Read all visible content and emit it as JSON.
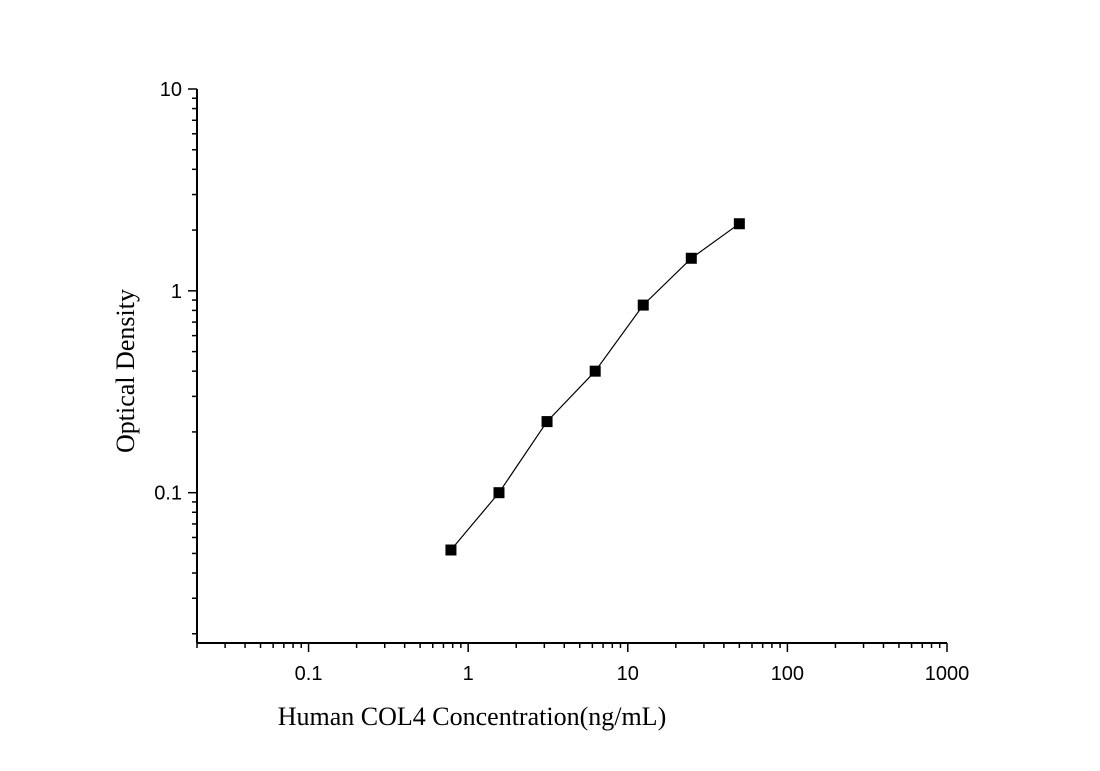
{
  "chart_data": {
    "type": "scatter",
    "xscale": "log",
    "yscale": "log",
    "xlim": [
      0.02,
      1000
    ],
    "ylim": [
      0.018,
      10
    ],
    "xlabel": "Human COL4 Concentration(ng/mL)",
    "ylabel": "Optical Density",
    "x_tick_labels": [
      "0.1",
      "1",
      "10",
      "100",
      "1000"
    ],
    "y_tick_labels": [
      "0.1",
      "1",
      "10"
    ],
    "x_tick_values": [
      0.1,
      1,
      10,
      100,
      1000
    ],
    "y_tick_values": [
      0.1,
      1,
      10
    ],
    "grid": false,
    "line_connected": true,
    "marker": "square",
    "color": "#000000",
    "series": [
      {
        "x": [
          0.78,
          1.56,
          3.12,
          6.25,
          12.5,
          25,
          50
        ],
        "y": [
          0.052,
          0.1,
          0.225,
          0.4,
          0.85,
          1.45,
          2.15
        ]
      }
    ]
  }
}
